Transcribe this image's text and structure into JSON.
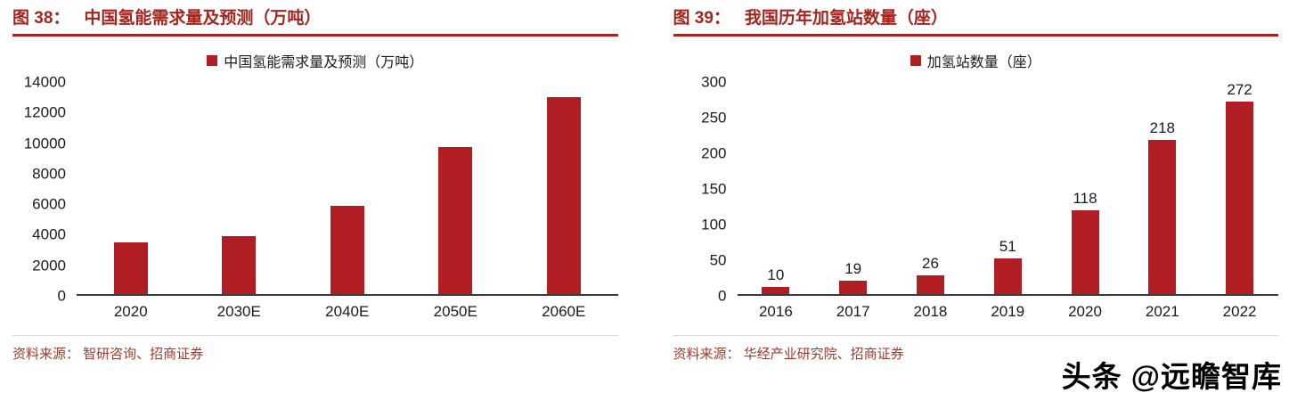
{
  "panels": [
    {
      "figure_label": "图 38：",
      "title": "中国氢能需求量及预测（万吨）",
      "source": "资料来源： 智研咨询、招商证券"
    },
    {
      "figure_label": "图 39：",
      "title": "我国历年加氢站数量（座）",
      "source": "资料来源： 华经产业研究院、招商证券"
    }
  ],
  "chart_data": [
    {
      "type": "bar",
      "title": "中国氢能需求量及预测（万吨）",
      "legend": "中国氢能需求量及预测（万吨）",
      "categories": [
        "2020",
        "2030E",
        "2040E",
        "2050E",
        "2060E"
      ],
      "values": [
        3400,
        3800,
        5800,
        9700,
        13000
      ],
      "ylim": [
        0,
        14000
      ],
      "yticks": [
        0,
        2000,
        4000,
        6000,
        8000,
        10000,
        12000,
        14000
      ],
      "show_value_labels": false,
      "grid": false,
      "legend_position": "top"
    },
    {
      "type": "bar",
      "title": "我国历年加氢站数量（座）",
      "legend": "加氢站数量（座）",
      "categories": [
        "2016",
        "2017",
        "2018",
        "2019",
        "2020",
        "2021",
        "2022"
      ],
      "values": [
        10,
        19,
        26,
        51,
        118,
        218,
        272
      ],
      "ylim": [
        0,
        300
      ],
      "yticks": [
        0,
        50,
        100,
        150,
        200,
        250,
        300
      ],
      "show_value_labels": true,
      "grid": false,
      "legend_position": "top"
    }
  ],
  "watermark": {
    "text": "头条 @远瞻智库"
  },
  "colors": {
    "bar": "#b01e23",
    "title": "#a3251e",
    "source": "#a03a2a",
    "axis": "#3a3a3a"
  }
}
